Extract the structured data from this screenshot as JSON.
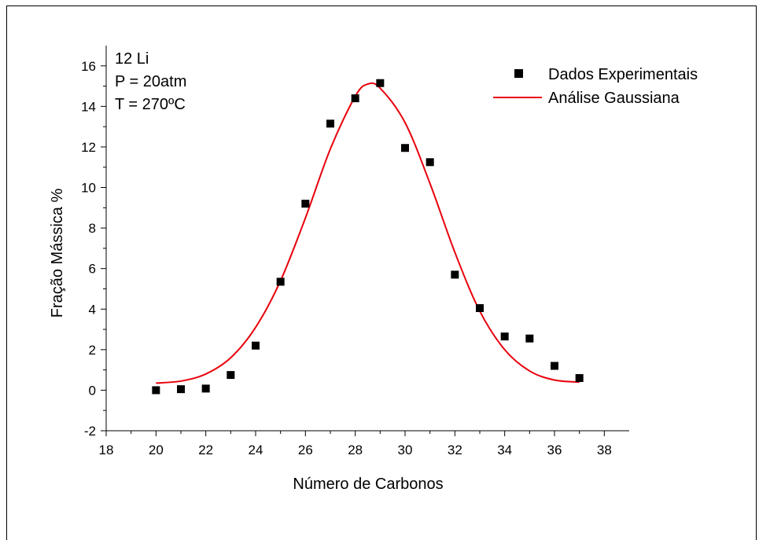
{
  "chart_data": {
    "type": "scatter",
    "title": "",
    "xlabel": "Número de Carbonos",
    "ylabel": "Fração Mássica %",
    "xlim": [
      18,
      39
    ],
    "ylim": [
      -2,
      17
    ],
    "xticks": [
      18,
      20,
      22,
      24,
      26,
      28,
      30,
      32,
      34,
      36,
      38
    ],
    "yticks": [
      -2,
      0,
      2,
      4,
      6,
      8,
      10,
      12,
      14,
      16
    ],
    "grid": false,
    "legend_position": "top-right",
    "annotation": [
      "12 Li",
      "P = 20atm",
      "T = 270ºC"
    ],
    "series": [
      {
        "name": "Dados Experimentais",
        "kind": "points",
        "marker": "square",
        "color": "#000000",
        "x": [
          20,
          21,
          22,
          23,
          24,
          25,
          26,
          27,
          28,
          29,
          30,
          31,
          32,
          33,
          34,
          35,
          36,
          37
        ],
        "y": [
          0.0,
          0.05,
          0.08,
          0.75,
          2.2,
          5.35,
          9.2,
          13.15,
          14.4,
          15.15,
          11.95,
          11.25,
          5.7,
          4.05,
          2.65,
          2.55,
          1.2,
          0.6
        ]
      },
      {
        "name": "Análise Gaussiana",
        "kind": "line",
        "color": "#e8000b",
        "x": [
          20,
          21,
          22,
          23,
          24,
          25,
          26,
          27,
          28,
          28.5,
          29,
          30,
          31,
          32,
          33,
          34,
          35,
          36,
          37
        ],
        "y": [
          0.35,
          0.45,
          0.8,
          1.6,
          3.1,
          5.4,
          8.5,
          11.9,
          14.5,
          15.1,
          14.9,
          13.2,
          10.2,
          6.8,
          3.9,
          2.0,
          0.95,
          0.5,
          0.4
        ]
      }
    ]
  }
}
